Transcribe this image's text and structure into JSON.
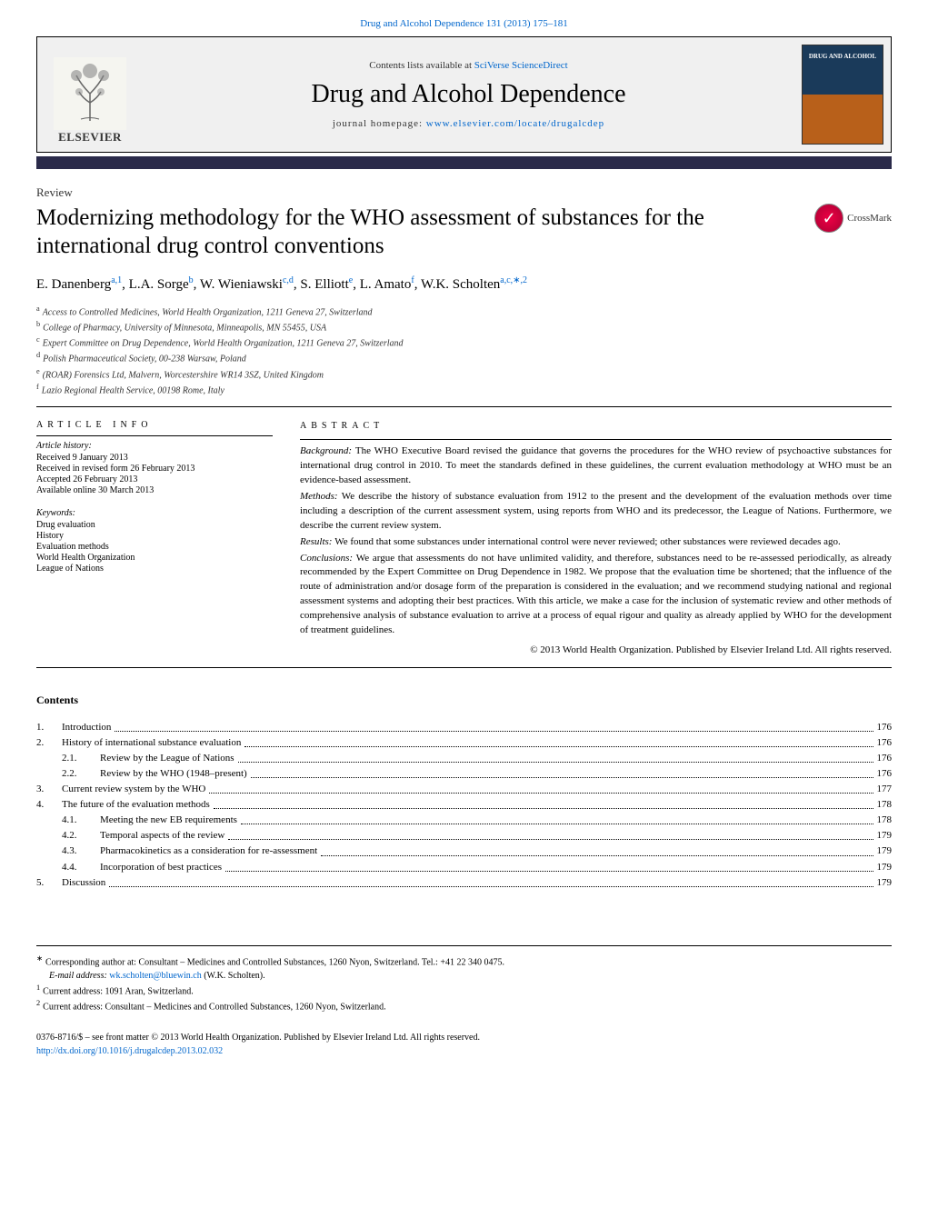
{
  "journal_ref": {
    "text": "Drug and Alcohol Dependence 131 (2013) 175–181",
    "color": "#0066cc"
  },
  "header": {
    "contents_prefix": "Contents lists available at ",
    "contents_link": "SciVerse ScienceDirect",
    "journal_title": "Drug and Alcohol Dependence",
    "homepage_prefix": "journal homepage: ",
    "homepage_link": "www.elsevier.com/locate/drugalcdep",
    "elsevier_text": "ELSEVIER",
    "cover_text": "DRUG AND ALCOHOL"
  },
  "review_label": "Review",
  "title": "Modernizing methodology for the WHO assessment of substances for the international drug control conventions",
  "crossmark_text": "CrossMark",
  "authors_html": "E. Danenberg|a,1|, L.A. Sorge|b|, W. Wieniawski|c,d|, S. Elliott|e|, L. Amato|f|, W.K. Scholten|a,c,*,2|",
  "authors": [
    {
      "name": "E. Danenberg",
      "sup": "a,1"
    },
    {
      "name": "L.A. Sorge",
      "sup": "b"
    },
    {
      "name": "W. Wieniawski",
      "sup": "c,d"
    },
    {
      "name": "S. Elliott",
      "sup": "e"
    },
    {
      "name": "L. Amato",
      "sup": "f"
    },
    {
      "name": "W.K. Scholten",
      "sup": "a,c,∗,2"
    }
  ],
  "affiliations": [
    {
      "sup": "a",
      "text": "Access to Controlled Medicines, World Health Organization, 1211 Geneva 27, Switzerland"
    },
    {
      "sup": "b",
      "text": "College of Pharmacy, University of Minnesota, Minneapolis, MN 55455, USA"
    },
    {
      "sup": "c",
      "text": "Expert Committee on Drug Dependence, World Health Organization, 1211 Geneva 27, Switzerland"
    },
    {
      "sup": "d",
      "text": "Polish Pharmaceutical Society, 00-238 Warsaw, Poland"
    },
    {
      "sup": "e",
      "text": "(ROAR) Forensics Ltd, Malvern, Worcestershire WR14 3SZ, United Kingdom"
    },
    {
      "sup": "f",
      "text": "Lazio Regional Health Service, 00198 Rome, Italy"
    }
  ],
  "article_info": {
    "heading": "article info",
    "history_label": "Article history:",
    "history": [
      "Received 9 January 2013",
      "Received in revised form 26 February 2013",
      "Accepted 26 February 2013",
      "Available online 30 March 2013"
    ],
    "keywords_label": "Keywords:",
    "keywords": [
      "Drug evaluation",
      "History",
      "Evaluation methods",
      "World Health Organization",
      "League of Nations"
    ]
  },
  "abstract": {
    "heading": "abstract",
    "sections": [
      {
        "label": "Background:",
        "text": "The WHO Executive Board revised the guidance that governs the procedures for the WHO review of psychoactive substances for international drug control in 2010. To meet the standards defined in these guidelines, the current evaluation methodology at WHO must be an evidence-based assessment."
      },
      {
        "label": "Methods:",
        "text": "We describe the history of substance evaluation from 1912 to the present and the development of the evaluation methods over time including a description of the current assessment system, using reports from WHO and its predecessor, the League of Nations. Furthermore, we describe the current review system."
      },
      {
        "label": "Results:",
        "text": "We found that some substances under international control were never reviewed; other substances were reviewed decades ago."
      },
      {
        "label": "Conclusions:",
        "text": "We argue that assessments do not have unlimited validity, and therefore, substances need to be re-assessed periodically, as already recommended by the Expert Committee on Drug Dependence in 1982. We propose that the evaluation time be shortened; that the influence of the route of administration and/or dosage form of the preparation is considered in the evaluation; and we recommend studying national and regional assessment systems and adopting their best practices. With this article, we make a case for the inclusion of systematic review and other methods of comprehensive analysis of substance evaluation to arrive at a process of equal rigour and quality as already applied by WHO for the development of treatment guidelines."
      }
    ],
    "copyright": "© 2013 World Health Organization. Published by Elsevier Ireland Ltd. All rights reserved."
  },
  "contents": {
    "title": "Contents",
    "items": [
      {
        "num": "1.",
        "label": "Introduction",
        "page": "176",
        "sub": false
      },
      {
        "num": "2.",
        "label": "History of international substance evaluation",
        "page": "176",
        "sub": false
      },
      {
        "num": "2.1.",
        "label": "Review by the League of Nations",
        "page": "176",
        "sub": true
      },
      {
        "num": "2.2.",
        "label": "Review by the WHO (1948–present)",
        "page": "176",
        "sub": true
      },
      {
        "num": "3.",
        "label": "Current review system by the WHO",
        "page": "177",
        "sub": false
      },
      {
        "num": "4.",
        "label": "The future of the evaluation methods",
        "page": "178",
        "sub": false
      },
      {
        "num": "4.1.",
        "label": "Meeting the new EB requirements",
        "page": "178",
        "sub": true
      },
      {
        "num": "4.2.",
        "label": "Temporal aspects of the review",
        "page": "179",
        "sub": true
      },
      {
        "num": "4.3.",
        "label": "Pharmacokinetics as a consideration for re-assessment",
        "page": "179",
        "sub": true
      },
      {
        "num": "4.4.",
        "label": "Incorporation of best practices",
        "page": "179",
        "sub": true
      },
      {
        "num": "5.",
        "label": "Discussion",
        "page": "179",
        "sub": false
      }
    ]
  },
  "footer": {
    "corresponding": {
      "sup": "∗",
      "text": "Corresponding author at: Consultant – Medicines and Controlled Substances, 1260 Nyon, Switzerland. Tel.: +41 22 340 0475."
    },
    "email_label": "E-mail address: ",
    "email": "wk.scholten@bluewin.ch",
    "email_suffix": " (W.K. Scholten).",
    "notes": [
      {
        "sup": "1",
        "text": "Current address: 1091 Aran, Switzerland."
      },
      {
        "sup": "2",
        "text": "Current address: Consultant – Medicines and Controlled Substances, 1260 Nyon, Switzerland."
      }
    ],
    "issn_line": "0376-8716/$ – see front matter © 2013 World Health Organization. Published by Elsevier Ireland Ltd. All rights reserved.",
    "doi": "http://dx.doi.org/10.1016/j.drugalcdep.2013.02.032"
  },
  "colors": {
    "link": "#0066cc",
    "darkbar": "#2a2a4a",
    "cover_top": "#1a3a5a",
    "cover_bottom": "#b8601a"
  }
}
